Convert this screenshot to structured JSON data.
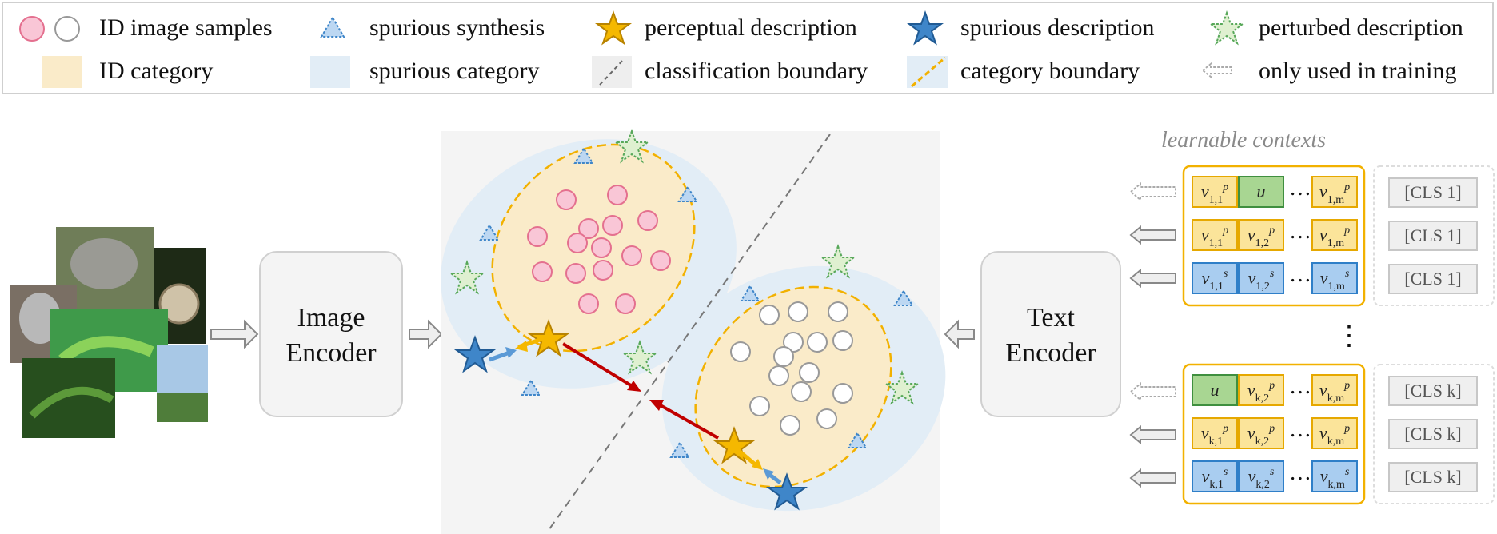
{
  "legend": {
    "id_samples": "ID image samples",
    "spurious_synthesis": "spurious synthesis",
    "perceptual_description": "perceptual description",
    "spurious_description": "spurious description",
    "perturbed_description": "perturbed description",
    "id_category": "ID category",
    "spurious_category": "spurious category",
    "classification_boundary": "classification boundary",
    "category_boundary": "category boundary",
    "only_used_in_training": "only used in training"
  },
  "image_encoder": {
    "line1": "Image",
    "line2": "Encoder"
  },
  "text_encoder": {
    "line1": "Text",
    "line2": "Encoder"
  },
  "learnable_contexts": "learnable contexts",
  "vertical_ellipsis": "⋮",
  "cls_tokens": {
    "g1": [
      "[CLS 1]",
      "[CLS 1]",
      "[CLS 1]"
    ],
    "g2": [
      "[CLS k]",
      "[CLS k]",
      "[CLS k]"
    ]
  },
  "colors": {
    "id_fill": "#faebc9",
    "spurious_fill": "#e2edf6",
    "star_gold": "#f5b800",
    "star_blue": "#3f86c9",
    "red_arrow": "#c00000"
  }
}
